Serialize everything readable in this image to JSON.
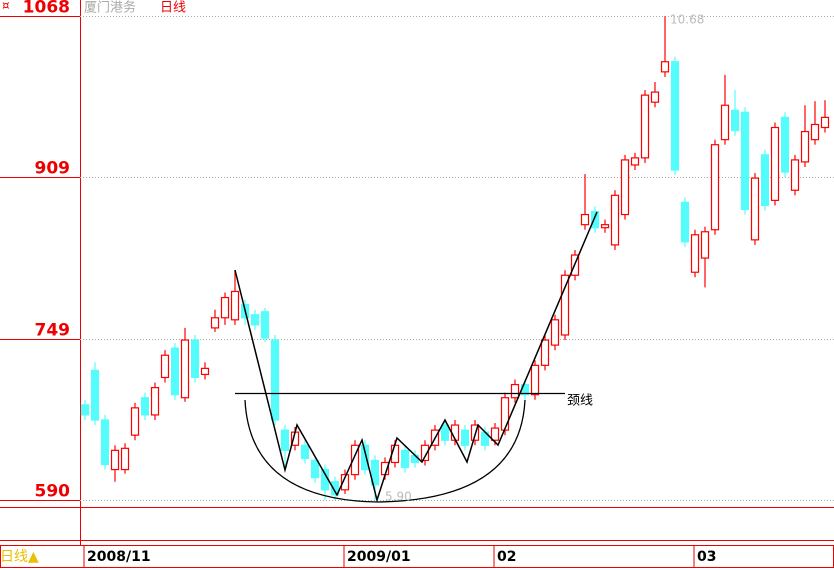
{
  "chart_data": {
    "type": "candlestick",
    "title": "厦门港务",
    "period": "日线",
    "period_marker": "日线▲",
    "ylim": [
      585,
      1084
    ],
    "yticks": [
      590,
      749,
      909,
      1068
    ],
    "grid": true,
    "up_color": "#ff0000",
    "down_color": "#54fcfc",
    "annotations": [
      "10.68",
      "5.90",
      "颈线"
    ],
    "categories": [
      "2008/11",
      null,
      null,
      null,
      null,
      null,
      null,
      null,
      null,
      null,
      null,
      null,
      null,
      null,
      null,
      null,
      null,
      null,
      null,
      null,
      null,
      null,
      null,
      null,
      null,
      null,
      "2009/01",
      null,
      null,
      null,
      null,
      null,
      null,
      null,
      null,
      null,
      null,
      null,
      null,
      null,
      null,
      "02",
      null,
      null,
      null,
      null,
      null,
      null,
      null,
      null,
      null,
      null,
      null,
      null,
      null,
      null,
      null,
      null,
      null,
      null,
      null,
      "03",
      null,
      null,
      null,
      null,
      null,
      null,
      null,
      null,
      null,
      null,
      null,
      null,
      null
    ],
    "open": [
      684,
      718,
      669,
      620,
      620,
      654,
      691,
      674,
      711,
      740,
      691,
      748,
      714,
      760,
      770,
      768,
      783,
      773,
      776,
      748,
      659,
      644,
      644,
      629,
      620,
      608,
      600,
      615,
      644,
      629,
      615,
      627,
      639,
      634,
      629,
      644,
      664,
      649,
      659,
      649,
      657,
      649,
      659,
      691,
      704,
      694,
      723,
      743,
      753,
      812,
      862,
      875,
      859,
      842,
      872,
      921,
      928,
      983,
      1013,
      1023,
      884,
      815,
      829,
      857,
      946,
      975,
      973,
      847,
      931,
      886,
      968,
      896,
      924,
      946,
      958
    ],
    "high": [
      689,
      726,
      674,
      644,
      646,
      686,
      696,
      706,
      738,
      745,
      760,
      753,
      726,
      778,
      795,
      817,
      788,
      778,
      780,
      753,
      664,
      662,
      649,
      634,
      625,
      613,
      620,
      649,
      649,
      634,
      632,
      649,
      644,
      639,
      649,
      664,
      669,
      669,
      664,
      669,
      662,
      666,
      696,
      709,
      709,
      728,
      753,
      773,
      817,
      837,
      912,
      880,
      867,
      896,
      931,
      933,
      995,
      1003,
      1068,
      1028,
      889,
      857,
      860,
      946,
      1010,
      995,
      978,
      913,
      936,
      963,
      973,
      931,
      980,
      984,
      985
    ],
    "low": [
      669,
      664,
      620,
      608,
      616,
      649,
      669,
      669,
      706,
      689,
      687,
      706,
      709,
      756,
      763,
      763,
      763,
      758,
      746,
      664,
      620,
      639,
      626,
      607,
      590,
      590,
      596,
      610,
      615,
      590,
      610,
      622,
      617,
      622,
      624,
      639,
      644,
      644,
      639,
      644,
      639,
      644,
      654,
      686,
      689,
      689,
      718,
      738,
      748,
      807,
      857,
      854,
      854,
      837,
      867,
      916,
      923,
      978,
      1008,
      911,
      840,
      810,
      800,
      852,
      941,
      950,
      872,
      842,
      876,
      881,
      909,
      891,
      919,
      941,
      953
    ],
    "close": [
      674,
      669,
      625,
      639,
      641,
      681,
      674,
      701,
      733,
      694,
      748,
      711,
      720,
      770,
      790,
      796,
      770,
      763,
      750,
      669,
      639,
      657,
      631,
      612,
      600,
      595,
      615,
      644,
      620,
      605,
      627,
      644,
      622,
      627,
      644,
      659,
      649,
      664,
      644,
      664,
      644,
      661,
      691,
      704,
      694,
      723,
      748,
      768,
      812,
      832,
      872,
      859,
      862,
      891,
      926,
      928,
      990,
      993,
      1023,
      916,
      845,
      852,
      855,
      941,
      980,
      955,
      877,
      908,
      881,
      958,
      914,
      926,
      954,
      961,
      968
    ]
  }
}
